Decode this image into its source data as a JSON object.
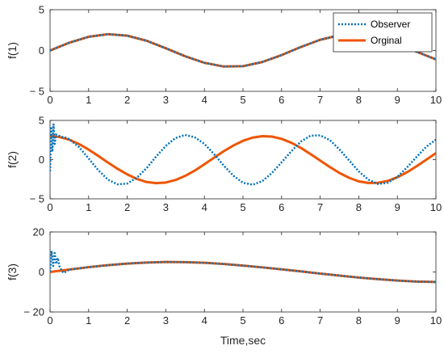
{
  "colors": {
    "observer": "#0072BD",
    "original": "#EE5500",
    "axis": "#262626"
  },
  "chart_data": [
    {
      "type": "line",
      "ylabel": "f(1)",
      "xlabel": "",
      "xlim": [
        0,
        10
      ],
      "ylim": [
        -5,
        5
      ],
      "xticks": [
        0,
        1,
        2,
        3,
        4,
        5,
        6,
        7,
        8,
        9,
        10
      ],
      "yticks": [
        -5,
        0,
        5
      ],
      "ytick_labels": [
        "− 5",
        "0",
        "5"
      ],
      "legend": {
        "position": "top-right",
        "entries": [
          "Observer",
          "Orginal"
        ]
      },
      "series": [
        {
          "name": "Observer",
          "style": "dotted",
          "x": [
            0,
            0.5,
            1,
            1.5,
            2,
            2.5,
            3,
            3.5,
            4,
            4.5,
            5,
            5.5,
            6,
            6.5,
            7,
            7.5,
            8,
            8.5,
            9,
            9.5,
            10
          ],
          "y": [
            0,
            0.96,
            1.68,
            2.0,
            1.82,
            1.2,
            0.28,
            -0.7,
            -1.51,
            -1.96,
            -1.92,
            -1.41,
            -0.56,
            0.43,
            1.31,
            1.88,
            1.98,
            1.6,
            0.82,
            -0.15,
            -1.09
          ]
        },
        {
          "name": "Orginal",
          "style": "solid",
          "x": [
            0,
            0.5,
            1,
            1.5,
            2,
            2.5,
            3,
            3.5,
            4,
            4.5,
            5,
            5.5,
            6,
            6.5,
            7,
            7.5,
            8,
            8.5,
            9,
            9.5,
            10
          ],
          "y": [
            0,
            0.96,
            1.68,
            2.0,
            1.82,
            1.2,
            0.28,
            -0.7,
            -1.51,
            -1.96,
            -1.92,
            -1.41,
            -0.56,
            0.43,
            1.31,
            1.88,
            1.98,
            1.6,
            0.82,
            -0.15,
            -1.09
          ]
        }
      ]
    },
    {
      "type": "line",
      "ylabel": "f(2)",
      "xlabel": "",
      "xlim": [
        0,
        10
      ],
      "ylim": [
        -5,
        5
      ],
      "xticks": [
        0,
        1,
        2,
        3,
        4,
        5,
        6,
        7,
        8,
        9,
        10
      ],
      "yticks": [
        -5,
        0,
        5
      ],
      "ytick_labels": [
        "− 5",
        "0",
        "5"
      ],
      "series": [
        {
          "name": "Observer",
          "style": "dotted",
          "x": [
            0,
            0.03,
            0.06,
            0.09,
            0.12,
            0.15,
            0.2,
            0.3,
            0.4,
            0.5,
            0.75,
            1.0,
            1.25,
            1.5,
            1.75,
            2.0,
            2.25,
            2.5,
            2.75,
            3.0,
            3.25,
            3.5,
            3.75,
            4.0,
            4.25,
            4.5,
            4.75,
            5.0,
            5.25,
            5.5,
            5.75,
            6.0,
            6.25,
            6.5,
            6.75,
            7.0,
            7.25,
            7.5,
            7.75,
            8.0,
            8.25,
            8.5,
            8.75,
            9.0,
            9.25,
            9.5,
            9.75,
            10.0
          ],
          "y": [
            -1.5,
            4.2,
            1.0,
            4.5,
            2.0,
            3.2,
            3.1,
            2.9,
            2.8,
            2.6,
            1.6,
            0.15,
            -1.35,
            -2.55,
            -3.15,
            -3.05,
            -2.3,
            -1.1,
            0.4,
            1.75,
            2.75,
            3.15,
            2.85,
            2.0,
            0.7,
            -0.75,
            -2.05,
            -2.95,
            -3.2,
            -2.75,
            -1.7,
            -0.35,
            1.05,
            2.3,
            3.05,
            3.1,
            2.5,
            1.3,
            -0.1,
            -1.5,
            -2.55,
            -3.1,
            -2.95,
            -2.2,
            -1.0,
            0.35,
            1.65,
            2.55
          ]
        },
        {
          "name": "Orginal",
          "style": "solid",
          "x": [
            0,
            0.25,
            0.5,
            0.75,
            1.0,
            1.25,
            1.5,
            1.75,
            2.0,
            2.25,
            2.5,
            2.75,
            3.0,
            3.25,
            3.5,
            3.75,
            4.0,
            4.25,
            4.5,
            4.75,
            5.0,
            5.25,
            5.5,
            5.75,
            6.0,
            6.25,
            6.5,
            6.75,
            7.0,
            7.25,
            7.5,
            7.75,
            8.0,
            8.25,
            8.5,
            8.75,
            9.0,
            9.25,
            9.5,
            9.75,
            10.0
          ],
          "y": [
            3.0,
            2.88,
            2.54,
            1.99,
            1.28,
            0.47,
            -0.37,
            -1.17,
            -1.88,
            -2.46,
            -2.85,
            -3.0,
            -2.92,
            -2.6,
            -2.08,
            -1.4,
            -0.59,
            0.25,
            1.07,
            1.8,
            2.4,
            2.81,
            2.99,
            2.94,
            2.65,
            2.16,
            1.5,
            0.71,
            -0.12,
            -0.94,
            -1.7,
            -2.32,
            -2.77,
            -2.98,
            -2.96,
            -2.72,
            -2.25,
            -1.61,
            -0.84,
            -0.01,
            0.83
          ]
        }
      ]
    },
    {
      "type": "line",
      "ylabel": "f(3)",
      "xlabel": "Time,sec",
      "xlim": [
        0,
        10
      ],
      "ylim": [
        -20,
        20
      ],
      "xticks": [
        0,
        1,
        2,
        3,
        4,
        5,
        6,
        7,
        8,
        9,
        10
      ],
      "yticks": [
        -20,
        0,
        20
      ],
      "ytick_labels": [
        "− 20",
        "0",
        "20"
      ],
      "series": [
        {
          "name": "Observer",
          "style": "dotted",
          "x": [
            0,
            0.04,
            0.08,
            0.12,
            0.16,
            0.2,
            0.25,
            0.3,
            0.35,
            0.5,
            1,
            1.5,
            2,
            2.5,
            3,
            3.5,
            4,
            4.5,
            5,
            5.5,
            6,
            6.5,
            7,
            7.5,
            8,
            8.5,
            9,
            9.5,
            10
          ],
          "y": [
            0,
            10.5,
            3.0,
            9.5,
            4.0,
            7.0,
            2.5,
            0.8,
            -0.5,
            1.2,
            2.4,
            3.4,
            4.2,
            4.7,
            5.0,
            4.9,
            4.6,
            4.0,
            3.2,
            2.3,
            1.3,
            0.3,
            -0.8,
            -1.8,
            -2.8,
            -3.6,
            -4.3,
            -4.8,
            -5.0
          ]
        },
        {
          "name": "Orginal",
          "style": "solid",
          "x": [
            0,
            0.5,
            1,
            1.5,
            2,
            2.5,
            3,
            3.5,
            4,
            4.5,
            5,
            5.5,
            6,
            6.5,
            7,
            7.5,
            8,
            8.5,
            9,
            9.5,
            10
          ],
          "y": [
            0,
            1.2,
            2.4,
            3.4,
            4.2,
            4.7,
            5.0,
            4.9,
            4.6,
            4.0,
            3.2,
            2.3,
            1.3,
            0.3,
            -0.8,
            -1.8,
            -2.8,
            -3.6,
            -4.3,
            -4.8,
            -5.0
          ]
        }
      ]
    }
  ]
}
